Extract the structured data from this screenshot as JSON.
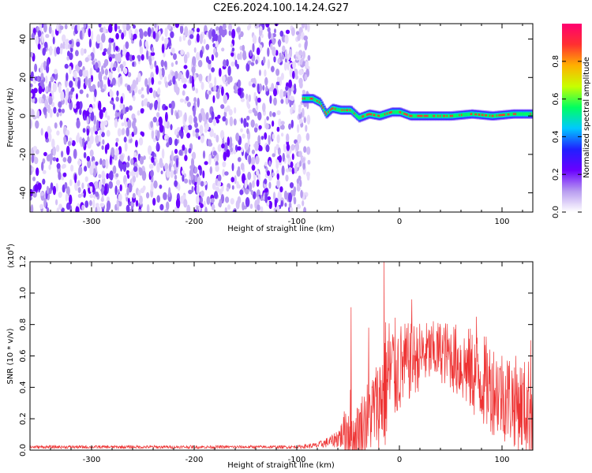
{
  "chart_data": [
    {
      "type": "heatmap",
      "title": "C2E6.2024.100.14.24.G27",
      "xlabel": "Height of straight line (km)",
      "ylabel": "Frequency (Hz)",
      "xlim": [
        -360,
        130
      ],
      "ylim": [
        -50,
        48
      ],
      "xticks": [
        -300,
        -200,
        -100,
        0,
        100
      ],
      "yticks": [
        40,
        20,
        0,
        -20,
        -40
      ],
      "colorbar": {
        "label": "Normalized spectral amplitude",
        "range": [
          0,
          1
        ],
        "ticks": [
          "0.0",
          "0.2",
          "0.4",
          "0.6",
          "0.8"
        ],
        "ticks_values": [
          0.0,
          0.2,
          0.4,
          0.6,
          0.8
        ],
        "colors": [
          "#ffffff",
          "#b89cf0",
          "#6a00ff",
          "#2020ff",
          "#00c8ff",
          "#00ff60",
          "#c8ff00",
          "#ffb000",
          "#ff3030",
          "#ff0070"
        ]
      },
      "noise_region_x": [
        -360,
        -88
      ],
      "signal_track": [
        {
          "x": -95,
          "y": 9
        },
        {
          "x": -85,
          "y": 9
        },
        {
          "x": -78,
          "y": 7
        },
        {
          "x": -72,
          "y": 1
        },
        {
          "x": -66,
          "y": 4
        },
        {
          "x": -58,
          "y": 3
        },
        {
          "x": -48,
          "y": 3
        },
        {
          "x": -40,
          "y": -1
        },
        {
          "x": -30,
          "y": 1
        },
        {
          "x": -20,
          "y": 0
        },
        {
          "x": -8,
          "y": 2
        },
        {
          "x": 0,
          "y": 2
        },
        {
          "x": 10,
          "y": 0
        },
        {
          "x": 30,
          "y": 0
        },
        {
          "x": 50,
          "y": 0
        },
        {
          "x": 70,
          "y": 1
        },
        {
          "x": 90,
          "y": 0
        },
        {
          "x": 110,
          "y": 1
        },
        {
          "x": 130,
          "y": 1
        }
      ]
    },
    {
      "type": "line",
      "xlabel": "Height of straight line (km)",
      "ylabel": "SNR (10 * v/v)",
      "yscale_label": "(x10",
      "yscale_exp": "4",
      "yscale_close": ")",
      "xlim": [
        -360,
        130
      ],
      "ylim": [
        0,
        1.2
      ],
      "xticks": [
        -300,
        -200,
        -100,
        0,
        100
      ],
      "yticks": [
        "0.0",
        "0.2",
        "0.4",
        "0.6",
        "0.8",
        "1.0",
        "1.2"
      ],
      "yticks_values": [
        0.0,
        0.2,
        0.4,
        0.6,
        0.8,
        1.0,
        1.2
      ],
      "series_color": "#ee3333",
      "envelope": {
        "x": [
          -360,
          -300,
          -200,
          -100,
          -80,
          -65,
          -55,
          -48,
          -45,
          -40,
          -30,
          -20,
          -15,
          -10,
          0,
          10,
          20,
          30,
          40,
          50,
          60,
          70,
          80,
          90,
          100,
          110,
          120,
          130
        ],
        "base": [
          0.02,
          0.02,
          0.02,
          0.02,
          0.03,
          0.06,
          0.1,
          0.15,
          0.08,
          0.12,
          0.22,
          0.3,
          0.4,
          0.48,
          0.52,
          0.56,
          0.6,
          0.62,
          0.63,
          0.6,
          0.55,
          0.5,
          0.45,
          0.4,
          0.36,
          0.32,
          0.28,
          0.25
        ],
        "spread": [
          0.01,
          0.01,
          0.01,
          0.01,
          0.02,
          0.04,
          0.1,
          0.35,
          0.15,
          0.2,
          0.25,
          0.3,
          0.45,
          0.4,
          0.3,
          0.25,
          0.22,
          0.2,
          0.2,
          0.22,
          0.25,
          0.28,
          0.3,
          0.3,
          0.3,
          0.3,
          0.3,
          0.35
        ]
      },
      "peaks": [
        {
          "x": -47,
          "y": 0.91
        },
        {
          "x": -15,
          "y": 1.2
        },
        {
          "x": 12,
          "y": 0.96
        },
        {
          "x": -30,
          "y": 0.78
        },
        {
          "x": 75,
          "y": 0.85
        },
        {
          "x": 128,
          "y": 0.7
        }
      ]
    }
  ]
}
